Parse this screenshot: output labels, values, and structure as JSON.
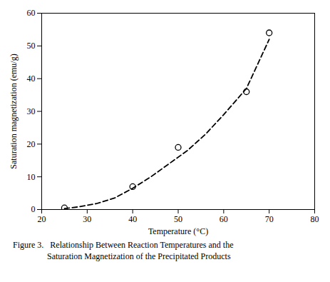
{
  "chart_data": {
    "type": "line",
    "xlabel": "Temperature (°C)",
    "ylabel": "Saturation magnetization (emu/g)",
    "xlim": [
      20,
      80
    ],
    "ylim": [
      0,
      60
    ],
    "xticks": [
      20,
      30,
      40,
      50,
      60,
      70,
      80
    ],
    "yticks": [
      0,
      10,
      20,
      30,
      40,
      50,
      60
    ],
    "grid": false,
    "caption": [
      "Figure 3.   Relationship Between Reaction Temperatures and the",
      "                Saturation Magnetization of the Precipitated Products"
    ],
    "series": [
      {
        "type": "line",
        "line_style": "dashed",
        "color": "#000000",
        "x": [
          25,
          28,
          32,
          36,
          40,
          44,
          48,
          52,
          56,
          60,
          65,
          70
        ],
        "values": [
          0.3,
          0.8,
          1.8,
          3.5,
          6.5,
          10,
          14,
          18,
          23,
          29,
          37,
          52
        ]
      },
      {
        "type": "scatter",
        "marker": "open_circle",
        "color": "#000000",
        "x": [
          25,
          40,
          50,
          65,
          70
        ],
        "values": [
          0.5,
          7,
          19,
          36,
          54
        ]
      }
    ]
  }
}
